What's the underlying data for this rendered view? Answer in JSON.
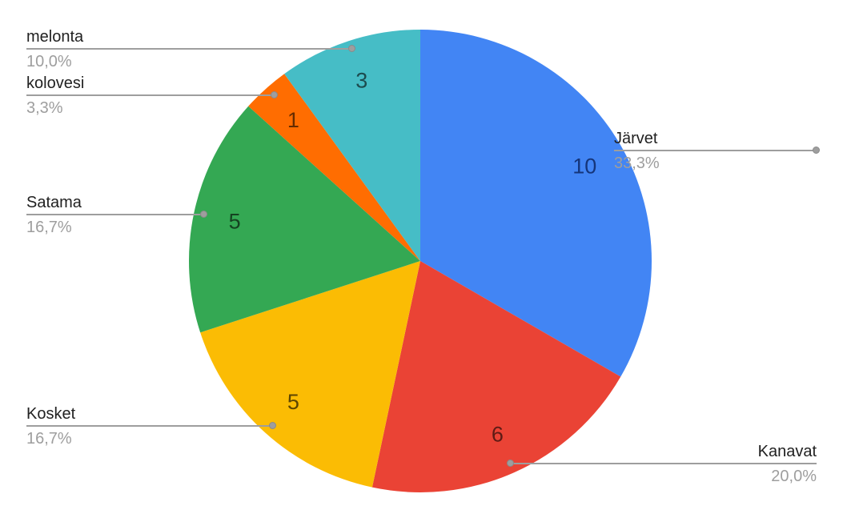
{
  "chart_data": {
    "type": "pie",
    "title": "",
    "total": 30,
    "start_angle_deg": 0,
    "direction": "clockwise",
    "legend_position": "labeled-callouts",
    "background_color": "#ffffff",
    "leader_line_color": "#9e9e9e",
    "label_color": "#212121",
    "percent_color": "#9e9e9e",
    "slices": [
      {
        "label": "Järvet",
        "value": 10,
        "pct": "33,3%",
        "color": "#4285F4",
        "value_text_color": "#15357a"
      },
      {
        "label": "Kanavat",
        "value": 6,
        "pct": "20,0%",
        "color": "#EA4335",
        "value_text_color": "#5e1b15"
      },
      {
        "label": "Kosket",
        "value": 5,
        "pct": "16,7%",
        "color": "#FBBC04",
        "value_text_color": "#5c4502"
      },
      {
        "label": "Satama",
        "value": 5,
        "pct": "16,7%",
        "color": "#34A853",
        "value_text_color": "#154321"
      },
      {
        "label": "kolovesi",
        "value": 1,
        "pct": "3,3%",
        "color": "#FF6D01",
        "value_text_color": "#662c00"
      },
      {
        "label": "melonta",
        "value": 3,
        "pct": "10,0%",
        "color": "#46BDC6",
        "value_text_color": "#1c4b4f"
      }
    ]
  }
}
